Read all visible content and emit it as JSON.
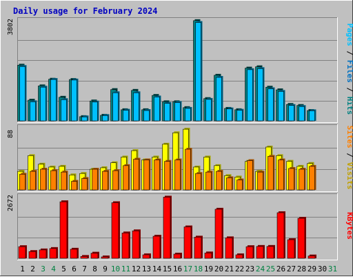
{
  "title": "Daily usage for February 2024",
  "colors": {
    "background": "#c0c0c0",
    "panel": "#c0c0c0",
    "grid": "#808080",
    "title": "#0000c0",
    "hits_front": "#00e0e0",
    "hits_back": "#008080",
    "files_front": "#00c0ff",
    "files_back": "#0070a0",
    "visits_front": "#ffff00",
    "visits_back": "#a0a000",
    "sites_front": "#ff8000",
    "sites_back": "#a05000",
    "kbytes_front": "#ff0000",
    "kbytes_back": "#800000",
    "weekday_label": "#000000",
    "weekend_label": "#008040"
  },
  "legend": {
    "pages": "Pages",
    "files": "Files",
    "hits": "Hits",
    "sites": "Sites",
    "visits": "Visits",
    "kbytes": "KBytes",
    "sep": " / "
  },
  "chart_data": [
    {
      "type": "bar",
      "title": "Daily usage for February 2024",
      "panel": "Hits / Files / Pages",
      "ymax_label": "3802",
      "ylim": [
        0,
        3802
      ],
      "categories": [
        "1",
        "2",
        "3",
        "4",
        "5",
        "6",
        "7",
        "8",
        "9",
        "10",
        "11",
        "12",
        "13",
        "14",
        "15",
        "16",
        "17",
        "18",
        "19",
        "20",
        "21",
        "22",
        "23",
        "24",
        "25",
        "26",
        "27",
        "28",
        "29",
        "30",
        "31"
      ],
      "series": [
        {
          "name": "Hits",
          "values": [
            2100,
            780,
            1320,
            1570,
            890,
            1560,
            160,
            750,
            210,
            1180,
            420,
            1150,
            420,
            960,
            720,
            720,
            500,
            3780,
            840,
            1720,
            470,
            420,
            1990,
            2040,
            1270,
            1170,
            620,
            580,
            390,
            null,
            null
          ]
        },
        {
          "name": "Files",
          "values": [
            2050,
            720,
            1270,
            1560,
            800,
            1540,
            150,
            710,
            200,
            1060,
            400,
            1060,
            390,
            900,
            660,
            690,
            470,
            3710,
            810,
            1640,
            450,
            400,
            1930,
            1970,
            1210,
            1110,
            580,
            540,
            380,
            null,
            null
          ]
        }
      ]
    },
    {
      "type": "bar",
      "panel": "Visits / Sites",
      "ymax_label": "88",
      "ylim": [
        0,
        88
      ],
      "categories": [
        "1",
        "2",
        "3",
        "4",
        "5",
        "6",
        "7",
        "8",
        "9",
        "10",
        "11",
        "12",
        "13",
        "14",
        "15",
        "16",
        "17",
        "18",
        "19",
        "20",
        "21",
        "22",
        "23",
        "24",
        "25",
        "26",
        "27",
        "28",
        "29",
        "30",
        "31"
      ],
      "series": [
        {
          "name": "Visits",
          "values": [
            26,
            48,
            36,
            32,
            33,
            21,
            23,
            29,
            31,
            38,
            46,
            55,
            42,
            46,
            64,
            80,
            85,
            32,
            46,
            34,
            20,
            18,
            40,
            26,
            60,
            48,
            40,
            33,
            37,
            null,
            null
          ]
        },
        {
          "name": "Sites",
          "values": [
            22,
            26,
            29,
            27,
            25,
            12,
            16,
            29,
            26,
            27,
            34,
            43,
            42,
            42,
            40,
            42,
            57,
            23,
            25,
            26,
            17,
            14,
            41,
            25,
            47,
            42,
            30,
            29,
            33,
            null,
            null
          ]
        }
      ]
    },
    {
      "type": "bar",
      "panel": "KBytes",
      "ymax_label": "2672",
      "ylim": [
        0,
        2672
      ],
      "categories": [
        "1",
        "2",
        "3",
        "4",
        "5",
        "6",
        "7",
        "8",
        "9",
        "10",
        "11",
        "12",
        "13",
        "14",
        "15",
        "16",
        "17",
        "18",
        "19",
        "20",
        "21",
        "22",
        "23",
        "24",
        "25",
        "26",
        "27",
        "28",
        "29",
        "30",
        "31"
      ],
      "series": [
        {
          "name": "KBytes",
          "values": [
            500,
            290,
            360,
            420,
            2430,
            390,
            80,
            220,
            60,
            2390,
            1090,
            1180,
            150,
            950,
            2630,
            180,
            1350,
            910,
            230,
            2110,
            880,
            150,
            500,
            510,
            510,
            1960,
            800,
            1720,
            100,
            null,
            null
          ]
        }
      ]
    }
  ],
  "x_labels": [
    {
      "label": "1",
      "weekend": false
    },
    {
      "label": "2",
      "weekend": false
    },
    {
      "label": "3",
      "weekend": true
    },
    {
      "label": "4",
      "weekend": true
    },
    {
      "label": "5",
      "weekend": false
    },
    {
      "label": "6",
      "weekend": false
    },
    {
      "label": "7",
      "weekend": false
    },
    {
      "label": "8",
      "weekend": false
    },
    {
      "label": "9",
      "weekend": false
    },
    {
      "label": "10",
      "weekend": true
    },
    {
      "label": "11",
      "weekend": true
    },
    {
      "label": "12",
      "weekend": false
    },
    {
      "label": "13",
      "weekend": false
    },
    {
      "label": "14",
      "weekend": false
    },
    {
      "label": "15",
      "weekend": false
    },
    {
      "label": "16",
      "weekend": false
    },
    {
      "label": "17",
      "weekend": true
    },
    {
      "label": "18",
      "weekend": true
    },
    {
      "label": "19",
      "weekend": false
    },
    {
      "label": "20",
      "weekend": false
    },
    {
      "label": "21",
      "weekend": false
    },
    {
      "label": "22",
      "weekend": false
    },
    {
      "label": "23",
      "weekend": false
    },
    {
      "label": "24",
      "weekend": true
    },
    {
      "label": "25",
      "weekend": true
    },
    {
      "label": "26",
      "weekend": false
    },
    {
      "label": "27",
      "weekend": false
    },
    {
      "label": "28",
      "weekend": false
    },
    {
      "label": "29",
      "weekend": false
    },
    {
      "label": "30",
      "weekend": false
    },
    {
      "label": "31",
      "weekend": true
    }
  ]
}
